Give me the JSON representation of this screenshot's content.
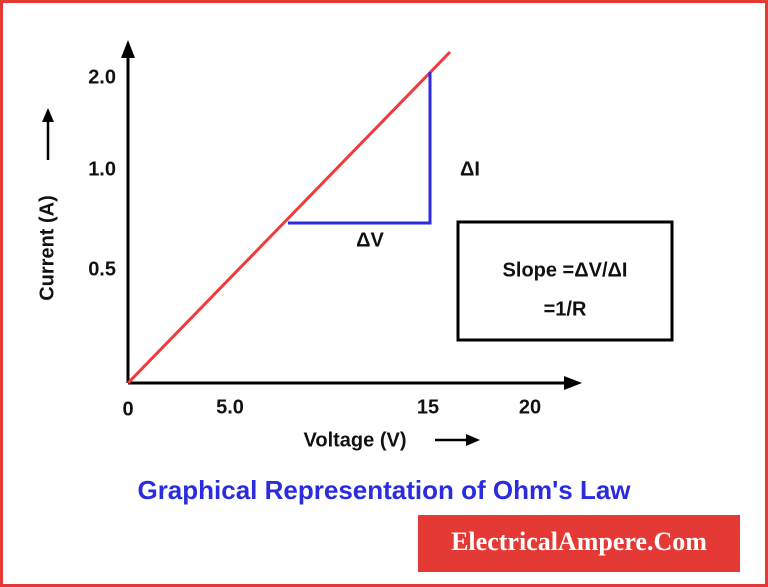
{
  "axes": {
    "y_label": "Current (A)",
    "x_label": "Voltage (V)",
    "y_ticks": [
      "2.0",
      "1.0",
      "0.5"
    ],
    "x_ticks": [
      "0",
      "5.0",
      "15",
      "20"
    ]
  },
  "triangle": {
    "delta_i": "ΔI",
    "delta_v": "ΔV"
  },
  "slope_box": {
    "line1": "Slope =ΔV/ΔI",
    "line2": "=1/R"
  },
  "title": "Graphical Representation of Ohm's Law",
  "footer": "ElectricalAmpere.Com"
}
